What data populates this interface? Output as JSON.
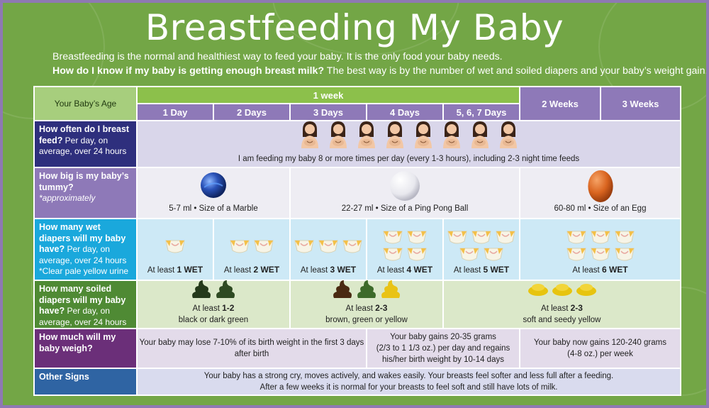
{
  "title": "Breastfeeding My Baby",
  "intro": {
    "line1": "Breastfeeding is the normal and healthiest way to feed your baby. It is the only food your baby needs.",
    "line2_bold": "How do I know if my baby is getting enough breast milk?",
    "line2_rest": " The best way is by the number of wet and soiled diapers and your baby’s weight gain."
  },
  "header": {
    "age_label": "Your Baby’s Age",
    "week_label": "1 week",
    "days": [
      "1 Day",
      "2 Days",
      "3 Days",
      "4 Days",
      "5, 6, 7 Days"
    ],
    "weeks": [
      "2 Weeks",
      "3 Weeks"
    ]
  },
  "rows": {
    "feed": {
      "q": "How often do I breast feed?",
      "sub": " Per day, on average, over 24 hours",
      "text": "I am feeding my baby 8 or more times per day (every 1-3 hours), including 2-3 night time feeds"
    },
    "tummy": {
      "q": "How big is my baby’s tummy?",
      "sub": " *approximately",
      "cells": [
        "5-7 ml • Size of a Marble",
        "22-27 ml • Size of a Ping Pong Ball",
        "60-80 ml • Size of an Egg"
      ]
    },
    "wet": {
      "q": "How many wet diapers will my baby have?",
      "sub": " Per day, on average, over 24 hours",
      "note": "*Clear pale yellow urine",
      "prefix": "At least ",
      "counts": [
        "1 WET",
        "2 WET",
        "3 WET",
        "4 WET",
        "5 WET",
        "6 WET"
      ]
    },
    "soiled": {
      "q": "How many soiled diapers will my baby have?",
      "sub": " Per day, on average, over 24 hours",
      "prefix": "At least ",
      "cells": [
        {
          "count": "1-2",
          "desc": "black or dark green"
        },
        {
          "count": "2-3",
          "desc": "brown, green or yellow"
        },
        {
          "count": "2-3",
          "desc": "soft and seedy yellow"
        }
      ]
    },
    "weigh": {
      "q": "How much will my baby weigh?",
      "cells": [
        {
          "l1": "Your baby may lose 7-10% of its birth weight in the first 3 days",
          "l2": "after birth"
        },
        {
          "l1": "Your baby gains 20-35 grams",
          "l2": "(2/3 to 1 1/3 oz.) per day and regains",
          "l3": "his/her birth weight by 10-14 days"
        },
        {
          "l1": "Your baby now gains 120-240 grams",
          "l2": "(4-8 oz.) per week"
        }
      ]
    },
    "other": {
      "q": "Other Signs",
      "l1": "Your baby has a strong cry, moves actively, and wakes easily. Your breasts feel softer and less full after a feeding.",
      "l2": "After a few weeks it is normal for your breasts to feel soft and still have lots of milk."
    }
  },
  "colors": {
    "background": "#73a646",
    "border": "#8e79b3",
    "header_purple": "#8e79b8",
    "header_green": "#8cc04b",
    "feed_label": "#2e2f7d",
    "tummy_label": "#8e79b8",
    "wet_label": "#1aa8dc",
    "soiled_label": "#4f8a34",
    "weigh_label": "#6b2f79",
    "other_label": "#2f64a3"
  }
}
